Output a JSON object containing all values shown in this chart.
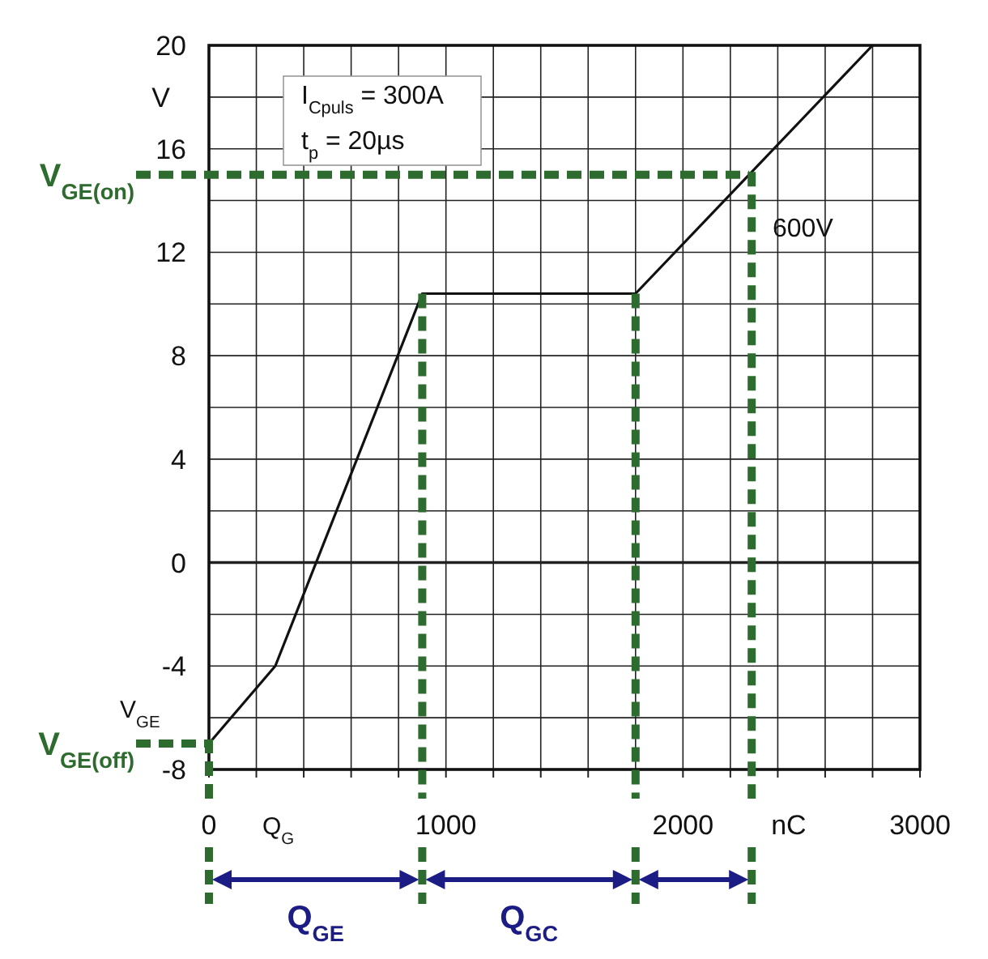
{
  "chart_data": {
    "type": "line",
    "xlabel": "nC",
    "ylabel": "V",
    "x": [
      0,
      280,
      900,
      1800,
      2800
    ],
    "series": [
      {
        "color": "#111111",
        "values": [
          -7,
          -4,
          10.4,
          10.4,
          20
        ]
      }
    ],
    "xlim": [
      0,
      3000
    ],
    "ylim": [
      -8,
      20
    ],
    "xticks": [
      0,
      {
        "value": 200,
        "label": null
      },
      {
        "value": 400,
        "label": null
      },
      {
        "value": 600,
        "label": null
      },
      {
        "value": 800,
        "label": null
      },
      1000,
      {
        "value": 1200,
        "label": null
      },
      {
        "value": 1400,
        "label": null
      },
      {
        "value": 1600,
        "label": null
      },
      {
        "value": 1800,
        "label": null
      },
      2000,
      {
        "value": 2200,
        "label": null
      },
      {
        "value": 2400,
        "label": null
      },
      {
        "value": 2600,
        "label": null
      },
      {
        "value": 2800,
        "label": null
      },
      3000
    ],
    "yticks": [
      -8,
      {
        "value": -6,
        "label": null
      },
      -4,
      {
        "value": -2,
        "label": null
      },
      0,
      {
        "value": 2,
        "label": null
      },
      4,
      {
        "value": 6,
        "label": null
      },
      8,
      {
        "value": 10,
        "label": null
      },
      12,
      {
        "value": 14,
        "label": null
      },
      16,
      {
        "value": 18,
        "label": null
      },
      20
    ],
    "grid": true,
    "ref_lines": [
      {
        "axis": "y",
        "value": 15,
        "label": "V$_{GE(on)}$",
        "color": "#2e6b2e",
        "line_style": "dashed"
      },
      {
        "axis": "y",
        "value": -7,
        "label": "V$_{GE(off)}$",
        "color": "#2e6b2e",
        "line_style": "dashed"
      },
      {
        "axis": "x",
        "value": 900,
        "color": "#2e6b2e",
        "line_style": "dashed"
      },
      {
        "axis": "x",
        "value": 1800,
        "color": "#2e6b2e",
        "line_style": "dashed"
      },
      {
        "axis": "x",
        "value": 2290,
        "color": "#2e6b2e",
        "line_style": "dashed"
      }
    ],
    "annotations": [
      "I$_{Cpuls}$ = 300A",
      "t$_{p}$ = 20µs",
      "600V",
      "V$_{GE}$",
      "Q$_{G}$",
      "Q$_{GE}$",
      "Q$_{GC}$"
    ]
  }
}
